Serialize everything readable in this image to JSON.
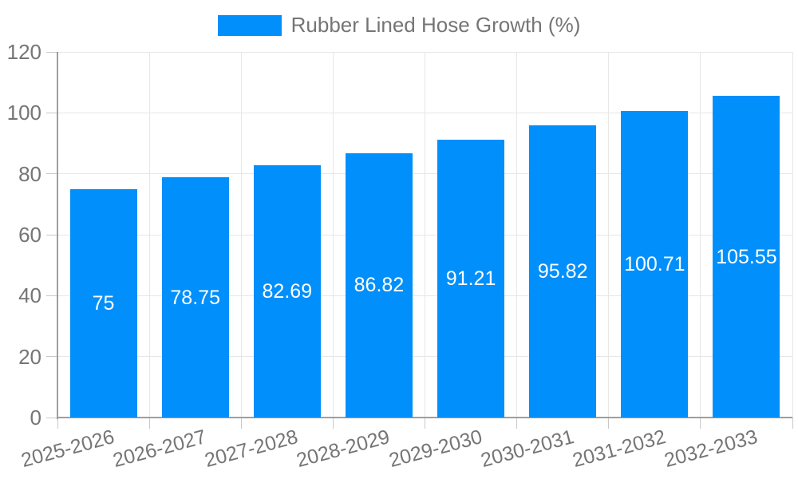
{
  "chart_data": {
    "type": "bar",
    "title": "",
    "xlabel": "",
    "ylabel": "",
    "series_name": "Rubber Lined Hose Growth (%)",
    "categories": [
      "2025-2026",
      "2026-2027",
      "2027-2028",
      "2028-2029",
      "2029-2030",
      "2030-2031",
      "2031-2032",
      "2032-2033"
    ],
    "values": [
      75,
      78.75,
      82.69,
      86.82,
      91.21,
      95.82,
      100.71,
      105.55
    ],
    "value_labels": [
      "75",
      "78.75",
      "82.69",
      "86.82",
      "91.21",
      "95.82",
      "100.71",
      "105.55"
    ],
    "ylim": [
      0,
      120
    ],
    "yticks": [
      0,
      20,
      40,
      60,
      80,
      100,
      120
    ],
    "grid": true,
    "legend_position": "top",
    "colors": {
      "bar": "#008ffb",
      "grid": "#e7e7e7",
      "axis": "#9e9e9e",
      "tick": "#c9c9c9",
      "text": "#757575",
      "value_label": "#ffffff",
      "background": "#ffffff"
    }
  }
}
